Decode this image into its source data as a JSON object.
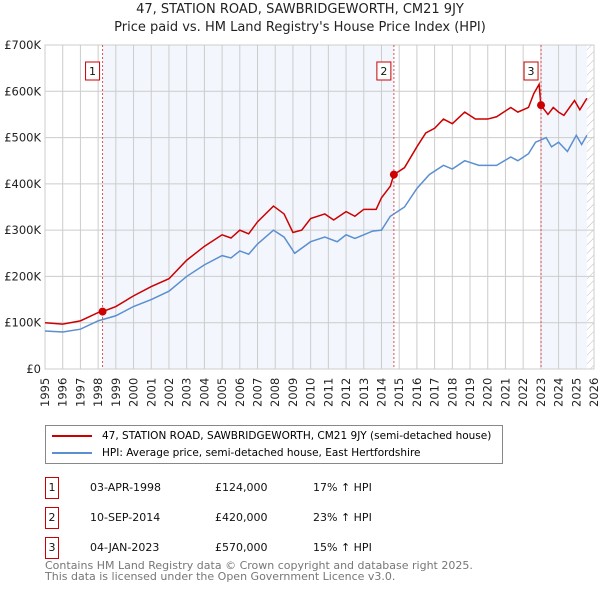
{
  "chart_data": {
    "type": "line",
    "title": "47, STATION ROAD, SAWBRIDGEWORTH, CM21 9JY",
    "subtitle": "Price paid vs. HM Land Registry's House Price Index (HPI)",
    "xlim": [
      1995,
      2026
    ],
    "ylim": [
      0,
      700000
    ],
    "x_ticks": [
      "1995",
      "1996",
      "1997",
      "1998",
      "1999",
      "2000",
      "2001",
      "2002",
      "2003",
      "2004",
      "2005",
      "2006",
      "2007",
      "2008",
      "2009",
      "2010",
      "2011",
      "2012",
      "2013",
      "2014",
      "2015",
      "2016",
      "2017",
      "2018",
      "2019",
      "2020",
      "2021",
      "2022",
      "2023",
      "2024",
      "2025",
      "2026"
    ],
    "y_ticks": [
      {
        "v": 0,
        "label": "£0"
      },
      {
        "v": 100000,
        "label": "£100K"
      },
      {
        "v": 200000,
        "label": "£200K"
      },
      {
        "v": 300000,
        "label": "£300K"
      },
      {
        "v": 400000,
        "label": "£400K"
      },
      {
        "v": 500000,
        "label": "£500K"
      },
      {
        "v": 600000,
        "label": "£600K"
      },
      {
        "v": 700000,
        "label": "£700K"
      }
    ],
    "grid": true,
    "series": [
      {
        "name": "47, STATION ROAD, SAWBRIDGEWORTH, CM21 9JY (semi-detached house)",
        "color": "#cc0000",
        "points": [
          [
            1995,
            100
          ],
          [
            1996,
            97
          ],
          [
            1997,
            104
          ],
          [
            1998,
            122
          ],
          [
            1998.25,
            124
          ],
          [
            1999,
            135
          ],
          [
            2000,
            158
          ],
          [
            2001,
            178
          ],
          [
            2002,
            195
          ],
          [
            2003,
            235
          ],
          [
            2004,
            265
          ],
          [
            2005,
            290
          ],
          [
            2005.5,
            283
          ],
          [
            2006,
            300
          ],
          [
            2006.5,
            292
          ],
          [
            2007,
            318
          ],
          [
            2007.9,
            352
          ],
          [
            2008.5,
            335
          ],
          [
            2009,
            295
          ],
          [
            2009.5,
            300
          ],
          [
            2010,
            325
          ],
          [
            2010.8,
            335
          ],
          [
            2011.3,
            322
          ],
          [
            2012,
            340
          ],
          [
            2012.5,
            330
          ],
          [
            2013,
            345
          ],
          [
            2013.7,
            345
          ],
          [
            2014,
            370
          ],
          [
            2014.5,
            395
          ],
          [
            2014.7,
            420
          ],
          [
            2015.3,
            435
          ],
          [
            2016,
            480
          ],
          [
            2016.5,
            510
          ],
          [
            2017,
            520
          ],
          [
            2017.5,
            540
          ],
          [
            2018,
            530
          ],
          [
            2018.7,
            555
          ],
          [
            2019.3,
            540
          ],
          [
            2020,
            540
          ],
          [
            2020.5,
            545
          ],
          [
            2021.3,
            565
          ],
          [
            2021.7,
            555
          ],
          [
            2022.3,
            565
          ],
          [
            2022.6,
            595
          ],
          [
            2022.9,
            615
          ],
          [
            2023,
            570
          ],
          [
            2023.4,
            550
          ],
          [
            2023.7,
            565
          ],
          [
            2024,
            555
          ],
          [
            2024.3,
            548
          ],
          [
            2024.9,
            580
          ],
          [
            2025.2,
            560
          ],
          [
            2025.6,
            585
          ]
        ]
      },
      {
        "name": "HPI: Average price, semi-detached house, East Hertfordshire",
        "color": "#5b8fd0",
        "points": [
          [
            1995,
            82
          ],
          [
            1996,
            80
          ],
          [
            1997,
            86
          ],
          [
            1998,
            104
          ],
          [
            1999,
            115
          ],
          [
            2000,
            135
          ],
          [
            2001,
            150
          ],
          [
            2002,
            168
          ],
          [
            2003,
            200
          ],
          [
            2004,
            225
          ],
          [
            2005,
            245
          ],
          [
            2005.5,
            240
          ],
          [
            2006,
            255
          ],
          [
            2006.5,
            248
          ],
          [
            2007,
            270
          ],
          [
            2007.9,
            300
          ],
          [
            2008.5,
            285
          ],
          [
            2009.1,
            250
          ],
          [
            2010,
            275
          ],
          [
            2010.8,
            285
          ],
          [
            2011.5,
            275
          ],
          [
            2012,
            290
          ],
          [
            2012.5,
            282
          ],
          [
            2013,
            290
          ],
          [
            2013.5,
            298
          ],
          [
            2014,
            300
          ],
          [
            2014.5,
            330
          ],
          [
            2015.3,
            350
          ],
          [
            2016,
            390
          ],
          [
            2016.7,
            420
          ],
          [
            2017.5,
            440
          ],
          [
            2018,
            432
          ],
          [
            2018.7,
            450
          ],
          [
            2019.5,
            440
          ],
          [
            2020.5,
            440
          ],
          [
            2021.3,
            458
          ],
          [
            2021.7,
            450
          ],
          [
            2022.3,
            465
          ],
          [
            2022.7,
            490
          ],
          [
            2023,
            495
          ],
          [
            2023.3,
            500
          ],
          [
            2023.6,
            480
          ],
          [
            2024,
            490
          ],
          [
            2024.5,
            470
          ],
          [
            2025,
            505
          ],
          [
            2025.3,
            485
          ],
          [
            2025.6,
            505
          ]
        ]
      }
    ],
    "sales": [
      {
        "n": "1",
        "x": 1998.25,
        "price": 124000,
        "date": "03-APR-1998",
        "price_label": "£124,000",
        "hpi": "17% ↑ HPI"
      },
      {
        "n": "2",
        "x": 2014.7,
        "price": 420000,
        "date": "10-SEP-2014",
        "price_label": "£420,000",
        "hpi": "23% ↑ HPI"
      },
      {
        "n": "3",
        "x": 2023.01,
        "price": 570000,
        "date": "04-JAN-2023",
        "price_label": "£570,000",
        "hpi": "15% ↑ HPI"
      }
    ],
    "hatch_from": 2025.6
  },
  "footer": {
    "line1": "Contains HM Land Registry data © Crown copyright and database right 2025.",
    "line2": "This data is licensed under the Open Government Licence v3.0."
  }
}
